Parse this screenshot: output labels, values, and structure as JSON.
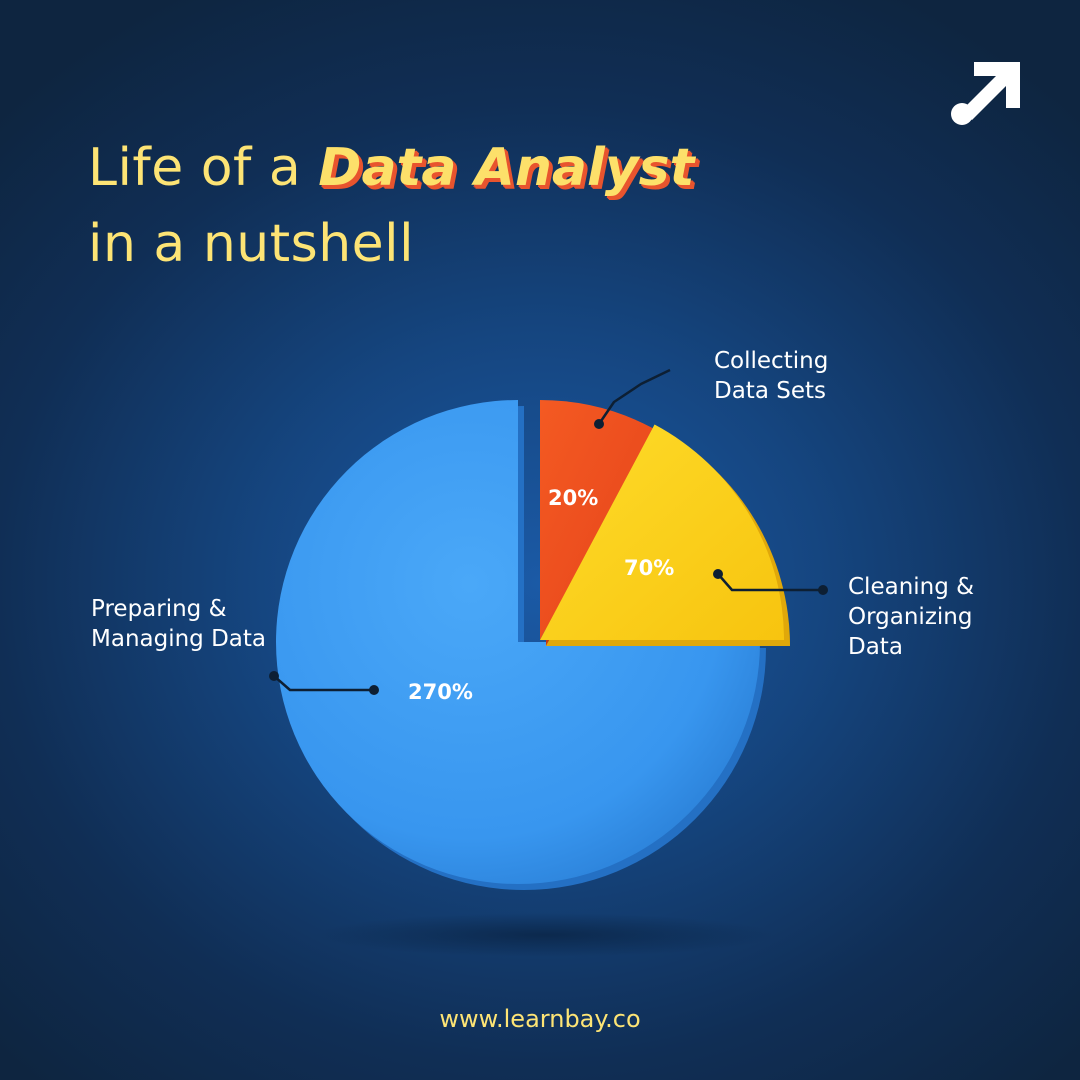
{
  "headline": {
    "line1_prefix": "Life of a ",
    "line1_accent": "Data Analyst",
    "line2": "in a nutshell"
  },
  "colors": {
    "blue": "#3b9cf2",
    "red": "#f1501f",
    "yellow": "#fdd417",
    "headline": "#fde475"
  },
  "chart_data": {
    "type": "pie",
    "series": [
      {
        "label": [
          "Collecting",
          "Data Sets"
        ],
        "value_label": "20%",
        "value": 20,
        "color": "#f1501f"
      },
      {
        "label": [
          "Cleaning &",
          "Organizing",
          "Data"
        ],
        "value_label": "70%",
        "value": 70,
        "color": "#fdd417"
      },
      {
        "label": [
          "Preparing &",
          "Managing Data"
        ],
        "value_label": "270%",
        "value": 270,
        "color": "#3b9cf2"
      }
    ]
  },
  "footer": {
    "url": "www.learnbay.co"
  }
}
